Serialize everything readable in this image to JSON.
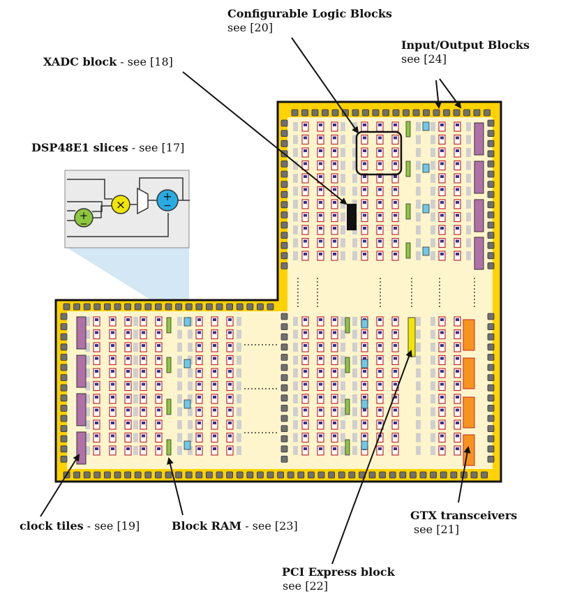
{
  "labels": {
    "clb": {
      "title": "Configurable Logic Blocks",
      "ref": "see [20]"
    },
    "io": {
      "title": "Input/Output Blocks",
      "ref": "see [24]"
    },
    "xadc": {
      "title": "XADC block",
      "sep": " - ",
      "ref": "see [18]"
    },
    "dsp": {
      "title": "DSP48E1 slices",
      "sep": " - ",
      "ref": "see [17]"
    },
    "clock": {
      "title": "clock tiles",
      "sep": " - ",
      "ref": "see [19]"
    },
    "bram": {
      "title": "Block RAM",
      "sep": " - ",
      "ref": "see [23]"
    },
    "gtx": {
      "title": "GTX transceivers",
      "ref": "see [21]"
    },
    "pcie": {
      "title": "PCI Express block",
      "ref": "see [22]"
    }
  },
  "dsp_symbols": {
    "adder": "+",
    "subtract": "−",
    "multiply": "×"
  },
  "colors": {
    "chip_fill": "#FFD200",
    "fabric_fill": "#FFF5CC",
    "io_pad": "#707070",
    "clock_tile": "#B070A8",
    "bram": "#8DC63F",
    "dsp": "#6DC8EC",
    "gtx": "#F7931E",
    "pcie": "#F2E600",
    "clb_red": "#C0272D",
    "clb_blue": "#2E3192",
    "xadc": "#111111",
    "dsp_adder_green": "#8DC63F",
    "dsp_mult_yellow": "#F2E600",
    "dsp_add_blue": "#29ABE2",
    "dsp_zoom": "#C5DFF2"
  }
}
